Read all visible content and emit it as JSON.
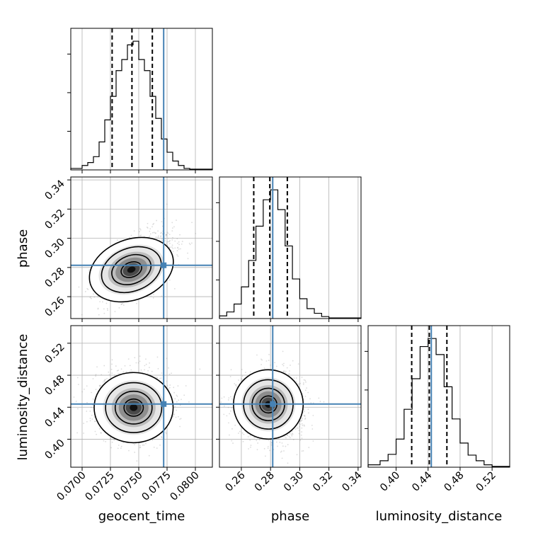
{
  "chart_data": {
    "type": "corner",
    "parameters": [
      "geocent_time",
      "phase",
      "luminosity_distance"
    ],
    "truths": {
      "geocent_time": 0.0772,
      "phase": 0.2815,
      "luminosity_distance": 0.444
    },
    "truth_color": "#4682b4",
    "grid": true,
    "ranges": {
      "geocent_time": [
        0.069,
        0.0815
      ],
      "phase": [
        0.245,
        0.342
      ],
      "luminosity_distance": [
        0.365,
        0.542
      ]
    },
    "ticks": {
      "geocent_time": {
        "values": [
          0.07,
          0.0725,
          0.075,
          0.0775,
          0.08
        ],
        "labels": [
          "0.0700",
          "0.0725",
          "0.0750",
          "0.0775",
          "0.0800"
        ]
      },
      "phase": {
        "values": [
          0.26,
          0.28,
          0.3,
          0.32,
          0.34
        ],
        "labels": [
          "0.26",
          "0.28",
          "0.30",
          "0.32",
          "0.34"
        ]
      },
      "luminosity_distance": {
        "values": [
          0.4,
          0.44,
          0.48,
          0.52
        ],
        "labels": [
          "0.40",
          "0.44",
          "0.48",
          "0.52"
        ]
      }
    },
    "quantiles": {
      "geocent_time": [
        0.07265,
        0.0744,
        0.0762
      ],
      "phase": [
        0.2685,
        0.2795,
        0.2915
      ],
      "luminosity_distance": [
        0.4195,
        0.4415,
        0.4635
      ]
    },
    "histograms": {
      "geocent_time": {
        "bin_edges": [
          0.069,
          0.07,
          0.0705,
          0.071,
          0.0715,
          0.072,
          0.0725,
          0.073,
          0.0735,
          0.074,
          0.0745,
          0.075,
          0.0755,
          0.076,
          0.0765,
          0.077,
          0.0775,
          0.078,
          0.0785,
          0.079,
          0.0795,
          0.0815
        ],
        "counts": [
          2,
          6,
          10,
          18,
          38,
          68,
          100,
          135,
          150,
          170,
          175,
          150,
          135,
          100,
          70,
          42,
          24,
          12,
          6,
          2,
          1
        ]
      },
      "phase": {
        "bin_edges": [
          0.245,
          0.25,
          0.255,
          0.26,
          0.265,
          0.27,
          0.275,
          0.28,
          0.285,
          0.29,
          0.295,
          0.3,
          0.305,
          0.31,
          0.315,
          0.32,
          0.342
        ],
        "counts": [
          4,
          10,
          22,
          48,
          88,
          140,
          180,
          195,
          165,
          110,
          60,
          30,
          15,
          8,
          3,
          1
        ]
      },
      "luminosity_distance": {
        "bin_edges": [
          0.365,
          0.38,
          0.39,
          0.4,
          0.41,
          0.42,
          0.43,
          0.44,
          0.45,
          0.46,
          0.47,
          0.48,
          0.49,
          0.5,
          0.51,
          0.52,
          0.542
        ],
        "counts": [
          3,
          8,
          16,
          35,
          72,
          110,
          150,
          160,
          140,
          100,
          60,
          30,
          15,
          8,
          3,
          1
        ]
      }
    },
    "joint_2d": [
      {
        "x": "geocent_time",
        "y": "phase",
        "mean": [
          0.0748,
          0.2815
        ],
        "sd": [
          0.00155,
          0.0105
        ],
        "corr": 0.5,
        "peak": [
          0.07435,
          0.2785
        ]
      },
      {
        "x": "geocent_time",
        "y": "luminosity_distance",
        "mean": [
          0.0745,
          0.443
        ],
        "sd": [
          0.00155,
          0.0195
        ],
        "corr": 0.0,
        "peak": [
          0.07455,
          0.4395
        ]
      },
      {
        "x": "phase",
        "y": "luminosity_distance",
        "mean": [
          0.2805,
          0.443
        ],
        "sd": [
          0.0105,
          0.0195
        ],
        "corr": -0.05,
        "peak": [
          0.2785,
          0.4435
        ]
      }
    ]
  }
}
